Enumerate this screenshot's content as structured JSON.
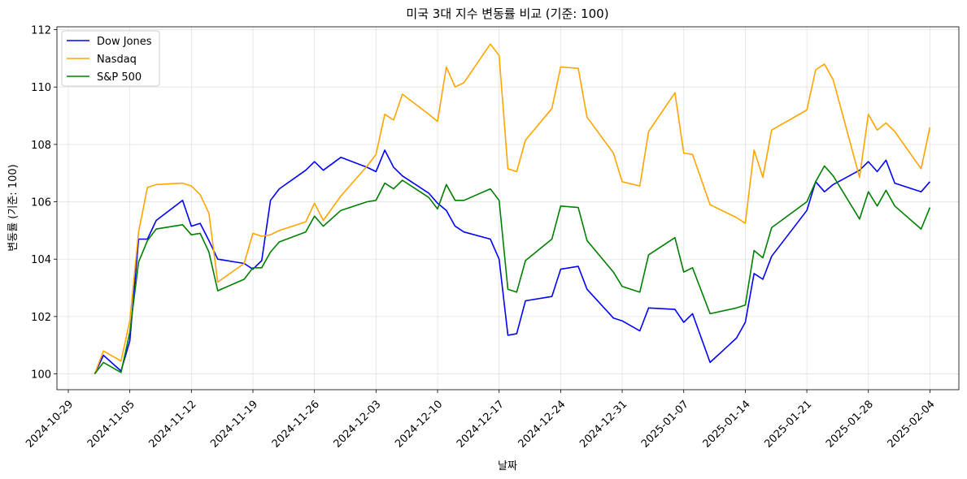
{
  "chart_data": {
    "type": "line",
    "title": "미국 3대 지수 변동률 비교 (기준: 100)",
    "xlabel": "날짜",
    "ylabel": "변동률 (기준: 100)",
    "ylim": [
      99.45,
      112.1
    ],
    "xlim": [
      "2024-10-27T17:00",
      "2025-02-07T07:00"
    ],
    "grid": true,
    "legend": "top-left",
    "xticks": [
      "2024-10-29",
      "2024-11-05",
      "2024-11-12",
      "2024-11-19",
      "2024-11-26",
      "2024-12-03",
      "2024-12-10",
      "2024-12-17",
      "2024-12-24",
      "2024-12-31",
      "2025-01-07",
      "2025-01-14",
      "2025-01-21",
      "2025-01-28",
      "2025-02-04"
    ],
    "yticks": [
      100,
      102,
      104,
      106,
      108,
      110,
      112
    ],
    "x": [
      "2024-11-01",
      "2024-11-02",
      "2024-11-04",
      "2024-11-05",
      "2024-11-06",
      "2024-11-07",
      "2024-11-08",
      "2024-11-11",
      "2024-11-12",
      "2024-11-13",
      "2024-11-14",
      "2024-11-15",
      "2024-11-18",
      "2024-11-19",
      "2024-11-20",
      "2024-11-21",
      "2024-11-22",
      "2024-11-25",
      "2024-11-26",
      "2024-11-27",
      "2024-11-29",
      "2024-12-02",
      "2024-12-03",
      "2024-12-04",
      "2024-12-05",
      "2024-12-06",
      "2024-12-09",
      "2024-12-10",
      "2024-12-11",
      "2024-12-12",
      "2024-12-13",
      "2024-12-16",
      "2024-12-17",
      "2024-12-18",
      "2024-12-19",
      "2024-12-20",
      "2024-12-23",
      "2024-12-24",
      "2024-12-26",
      "2024-12-27",
      "2024-12-30",
      "2024-12-31",
      "2025-01-02",
      "2025-01-03",
      "2025-01-06",
      "2025-01-07",
      "2025-01-08",
      "2025-01-10",
      "2025-01-13",
      "2025-01-14",
      "2025-01-15",
      "2025-01-16",
      "2025-01-17",
      "2025-01-21",
      "2025-01-22",
      "2025-01-23",
      "2025-01-24",
      "2025-01-27",
      "2025-01-28",
      "2025-01-29",
      "2025-01-30",
      "2025-01-31",
      "2025-02-03",
      "2025-02-04"
    ],
    "series": [
      {
        "name": "Dow Jones",
        "color": "#0000ff",
        "values": [
          100.0,
          100.65,
          100.1,
          101.15,
          104.7,
          104.7,
          105.35,
          106.05,
          105.15,
          105.25,
          104.65,
          104.0,
          103.85,
          103.65,
          103.95,
          106.05,
          106.45,
          107.1,
          107.4,
          107.1,
          107.55,
          107.2,
          107.05,
          107.8,
          107.2,
          106.9,
          106.3,
          105.95,
          105.7,
          105.15,
          104.95,
          104.7,
          104.0,
          101.35,
          101.4,
          102.55,
          102.7,
          103.65,
          103.75,
          102.95,
          101.95,
          101.85,
          101.5,
          102.3,
          102.25,
          101.8,
          102.1,
          100.4,
          101.25,
          101.8,
          103.5,
          103.3,
          104.1,
          105.7,
          106.7,
          106.35,
          106.6,
          107.1,
          107.4,
          107.05,
          107.45,
          106.65,
          106.35,
          106.7
        ]
      },
      {
        "name": "Nasdaq",
        "color": "#ffa500",
        "values": [
          100.0,
          100.8,
          100.45,
          101.85,
          104.95,
          106.5,
          106.6,
          106.65,
          106.55,
          106.25,
          105.6,
          103.2,
          103.85,
          104.9,
          104.8,
          104.85,
          105.0,
          105.3,
          105.95,
          105.35,
          106.2,
          107.25,
          107.65,
          109.05,
          108.85,
          109.75,
          109.05,
          108.8,
          110.7,
          110.0,
          110.15,
          111.5,
          111.1,
          107.15,
          107.05,
          108.15,
          109.25,
          110.7,
          110.65,
          108.95,
          107.7,
          106.7,
          106.55,
          108.45,
          109.8,
          107.7,
          107.65,
          105.9,
          105.45,
          105.25,
          107.8,
          106.85,
          108.5,
          109.2,
          110.6,
          110.8,
          110.25,
          106.85,
          109.05,
          108.5,
          108.75,
          108.45,
          107.15,
          108.6
        ]
      },
      {
        "name": "S&P 500",
        "color": "#008000",
        "values": [
          100.0,
          100.4,
          100.05,
          101.45,
          103.9,
          104.65,
          105.05,
          105.2,
          104.85,
          104.9,
          104.25,
          102.9,
          103.3,
          103.7,
          103.7,
          104.25,
          104.6,
          104.95,
          105.5,
          105.15,
          105.7,
          106.0,
          106.05,
          106.65,
          106.45,
          106.75,
          106.15,
          105.75,
          106.6,
          106.05,
          106.05,
          106.45,
          106.05,
          102.95,
          102.85,
          103.95,
          104.7,
          105.85,
          105.8,
          104.65,
          103.55,
          103.05,
          102.85,
          104.15,
          104.75,
          103.55,
          103.7,
          102.1,
          102.3,
          102.4,
          104.3,
          104.05,
          105.1,
          106.0,
          106.7,
          107.25,
          106.9,
          105.4,
          106.35,
          105.85,
          106.4,
          105.85,
          105.05,
          105.8
        ]
      }
    ]
  }
}
